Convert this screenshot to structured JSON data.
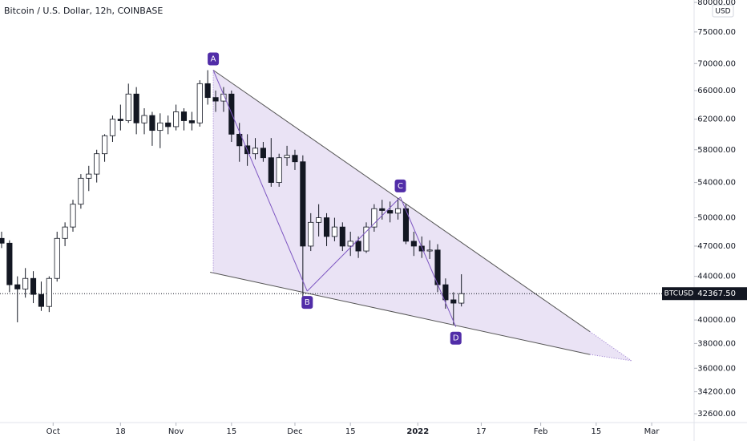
{
  "chart_data": {
    "type": "candlestick",
    "title": "Bitcoin / U.S. Dollar, 12h, COINBASE",
    "currency": "USD",
    "color": "#131722",
    "log_scale": true,
    "x": [
      0,
      2,
      4,
      6,
      8,
      10,
      12,
      14,
      16,
      18,
      20,
      22,
      24,
      26,
      28,
      30,
      32,
      34,
      36,
      38,
      40,
      42,
      44,
      46,
      48,
      50,
      52,
      54,
      56,
      58,
      60,
      62,
      64,
      66,
      68,
      70,
      72,
      74,
      76,
      78,
      80,
      82,
      84,
      86,
      88,
      90,
      92,
      94,
      96,
      98,
      100,
      102,
      104,
      106,
      108,
      110,
      112,
      114,
      116
    ],
    "open": [
      47800,
      47300,
      43200,
      42800,
      43800,
      42300,
      41200,
      43800,
      47800,
      49000,
      51500,
      54500,
      55000,
      57500,
      59800,
      62000,
      61800,
      65500,
      61500,
      62500,
      60500,
      61500,
      61000,
      63000,
      61800,
      61500,
      67000,
      65000,
      64500,
      65500,
      60000,
      58500,
      57500,
      58200,
      57000,
      54000,
      57000,
      57300,
      56500,
      47000,
      49500,
      50000,
      48000,
      49000,
      47000,
      47500,
      46500,
      49000,
      51000,
      50800,
      50500,
      51000,
      47500,
      47000,
      46500,
      46600,
      43200,
      41800,
      41500
    ],
    "high": [
      48500,
      47600,
      44000,
      44800,
      44500,
      43500,
      44000,
      48500,
      49500,
      52000,
      55000,
      56000,
      58000,
      60000,
      62500,
      64000,
      67000,
      66500,
      63500,
      63000,
      62800,
      62500,
      64000,
      63500,
      63000,
      67500,
      69000,
      66000,
      66500,
      66000,
      61500,
      60000,
      59500,
      59000,
      59500,
      57500,
      58500,
      58000,
      57300,
      50500,
      51500,
      50500,
      50000,
      49500,
      48500,
      48000,
      49500,
      51500,
      52000,
      51800,
      52200,
      51500,
      48500,
      48000,
      47600,
      47200,
      43800,
      42500,
      44200
    ],
    "low": [
      46800,
      42500,
      39800,
      42000,
      41500,
      40800,
      40700,
      43500,
      47000,
      48500,
      51000,
      53000,
      54000,
      56500,
      59000,
      60500,
      61500,
      60000,
      60000,
      58500,
      58200,
      60000,
      60500,
      60500,
      60500,
      61000,
      64000,
      63000,
      63000,
      59000,
      56500,
      56000,
      56800,
      56500,
      53500,
      53500,
      56000,
      55500,
      42000,
      46500,
      48000,
      47000,
      47500,
      46500,
      46000,
      45800,
      46300,
      48500,
      49800,
      49500,
      49800,
      47200,
      46000,
      45800,
      45700,
      42500,
      41000,
      39600,
      41200
    ],
    "close": [
      47300,
      43200,
      42800,
      43800,
      42300,
      41200,
      43800,
      47800,
      49000,
      51500,
      54500,
      55000,
      57500,
      59800,
      62000,
      61800,
      65500,
      61500,
      62500,
      60500,
      61500,
      61000,
      63000,
      61800,
      61500,
      67000,
      65000,
      64500,
      65500,
      60000,
      58500,
      57500,
      58200,
      57000,
      54000,
      57000,
      57300,
      56500,
      47000,
      49500,
      50000,
      48000,
      49000,
      47000,
      47500,
      46500,
      49000,
      51000,
      50800,
      50500,
      51000,
      47500,
      47000,
      46500,
      46600,
      43200,
      41800,
      41500,
      42367.5
    ],
    "xlim": [
      -0.4,
      174.7
    ],
    "xticks": [
      {
        "value": 13,
        "label": "Oct"
      },
      {
        "value": 30,
        "label": "18"
      },
      {
        "value": 44,
        "label": "Nov"
      },
      {
        "value": 58,
        "label": "15"
      },
      {
        "value": 74,
        "label": "Dec"
      },
      {
        "value": 88,
        "label": "15"
      },
      {
        "value": 105,
        "label": "2022"
      },
      {
        "value": 121,
        "label": "17"
      },
      {
        "value": 136,
        "label": "Feb"
      },
      {
        "value": 150,
        "label": "15"
      },
      {
        "value": 164,
        "label": "Mar"
      }
    ],
    "ylim": [
      32090,
      80420
    ],
    "yticks": [
      {
        "value": 32600,
        "label": "32600.00"
      },
      {
        "value": 34200,
        "label": "34200.00"
      },
      {
        "value": 36000,
        "label": "36000.00"
      },
      {
        "value": 38000,
        "label": "38000.00"
      },
      {
        "value": 40000,
        "label": "40000.00"
      },
      {
        "value": 44000,
        "label": "44000.00"
      },
      {
        "value": 47000,
        "label": "47000.00"
      },
      {
        "value": 50000,
        "label": "50000.00"
      },
      {
        "value": 54000,
        "label": "54000.00"
      },
      {
        "value": 58000,
        "label": "58000.00"
      },
      {
        "value": 62000,
        "label": "62000.00"
      },
      {
        "value": 66000,
        "label": "66000.00"
      },
      {
        "value": 70000,
        "label": "70000.00"
      },
      {
        "value": 75000,
        "label": "75000.00"
      },
      {
        "value": 80000,
        "label": "80000.00"
      }
    ],
    "price_line": {
      "name": "BTCUSD",
      "value": 42367.5,
      "label": "42367.50"
    },
    "pattern": {
      "points": [
        {
          "label": "A",
          "x": 53.4,
          "price": 69000
        },
        {
          "label": "B",
          "x": 77.1,
          "price": 42600
        },
        {
          "label": "C",
          "x": 100.6,
          "price": 52300
        },
        {
          "label": "D",
          "x": 114.6,
          "price": 39400
        }
      ],
      "upper": [
        {
          "x": 53.4,
          "price": 69000
        },
        {
          "x": 148.4,
          "price": 39000
        }
      ],
      "lower": [
        {
          "x": 52.6,
          "price": 44400
        },
        {
          "x": 148.4,
          "price": 37100
        }
      ],
      "tip": {
        "x": 158.9,
        "price": 36600
      }
    }
  }
}
